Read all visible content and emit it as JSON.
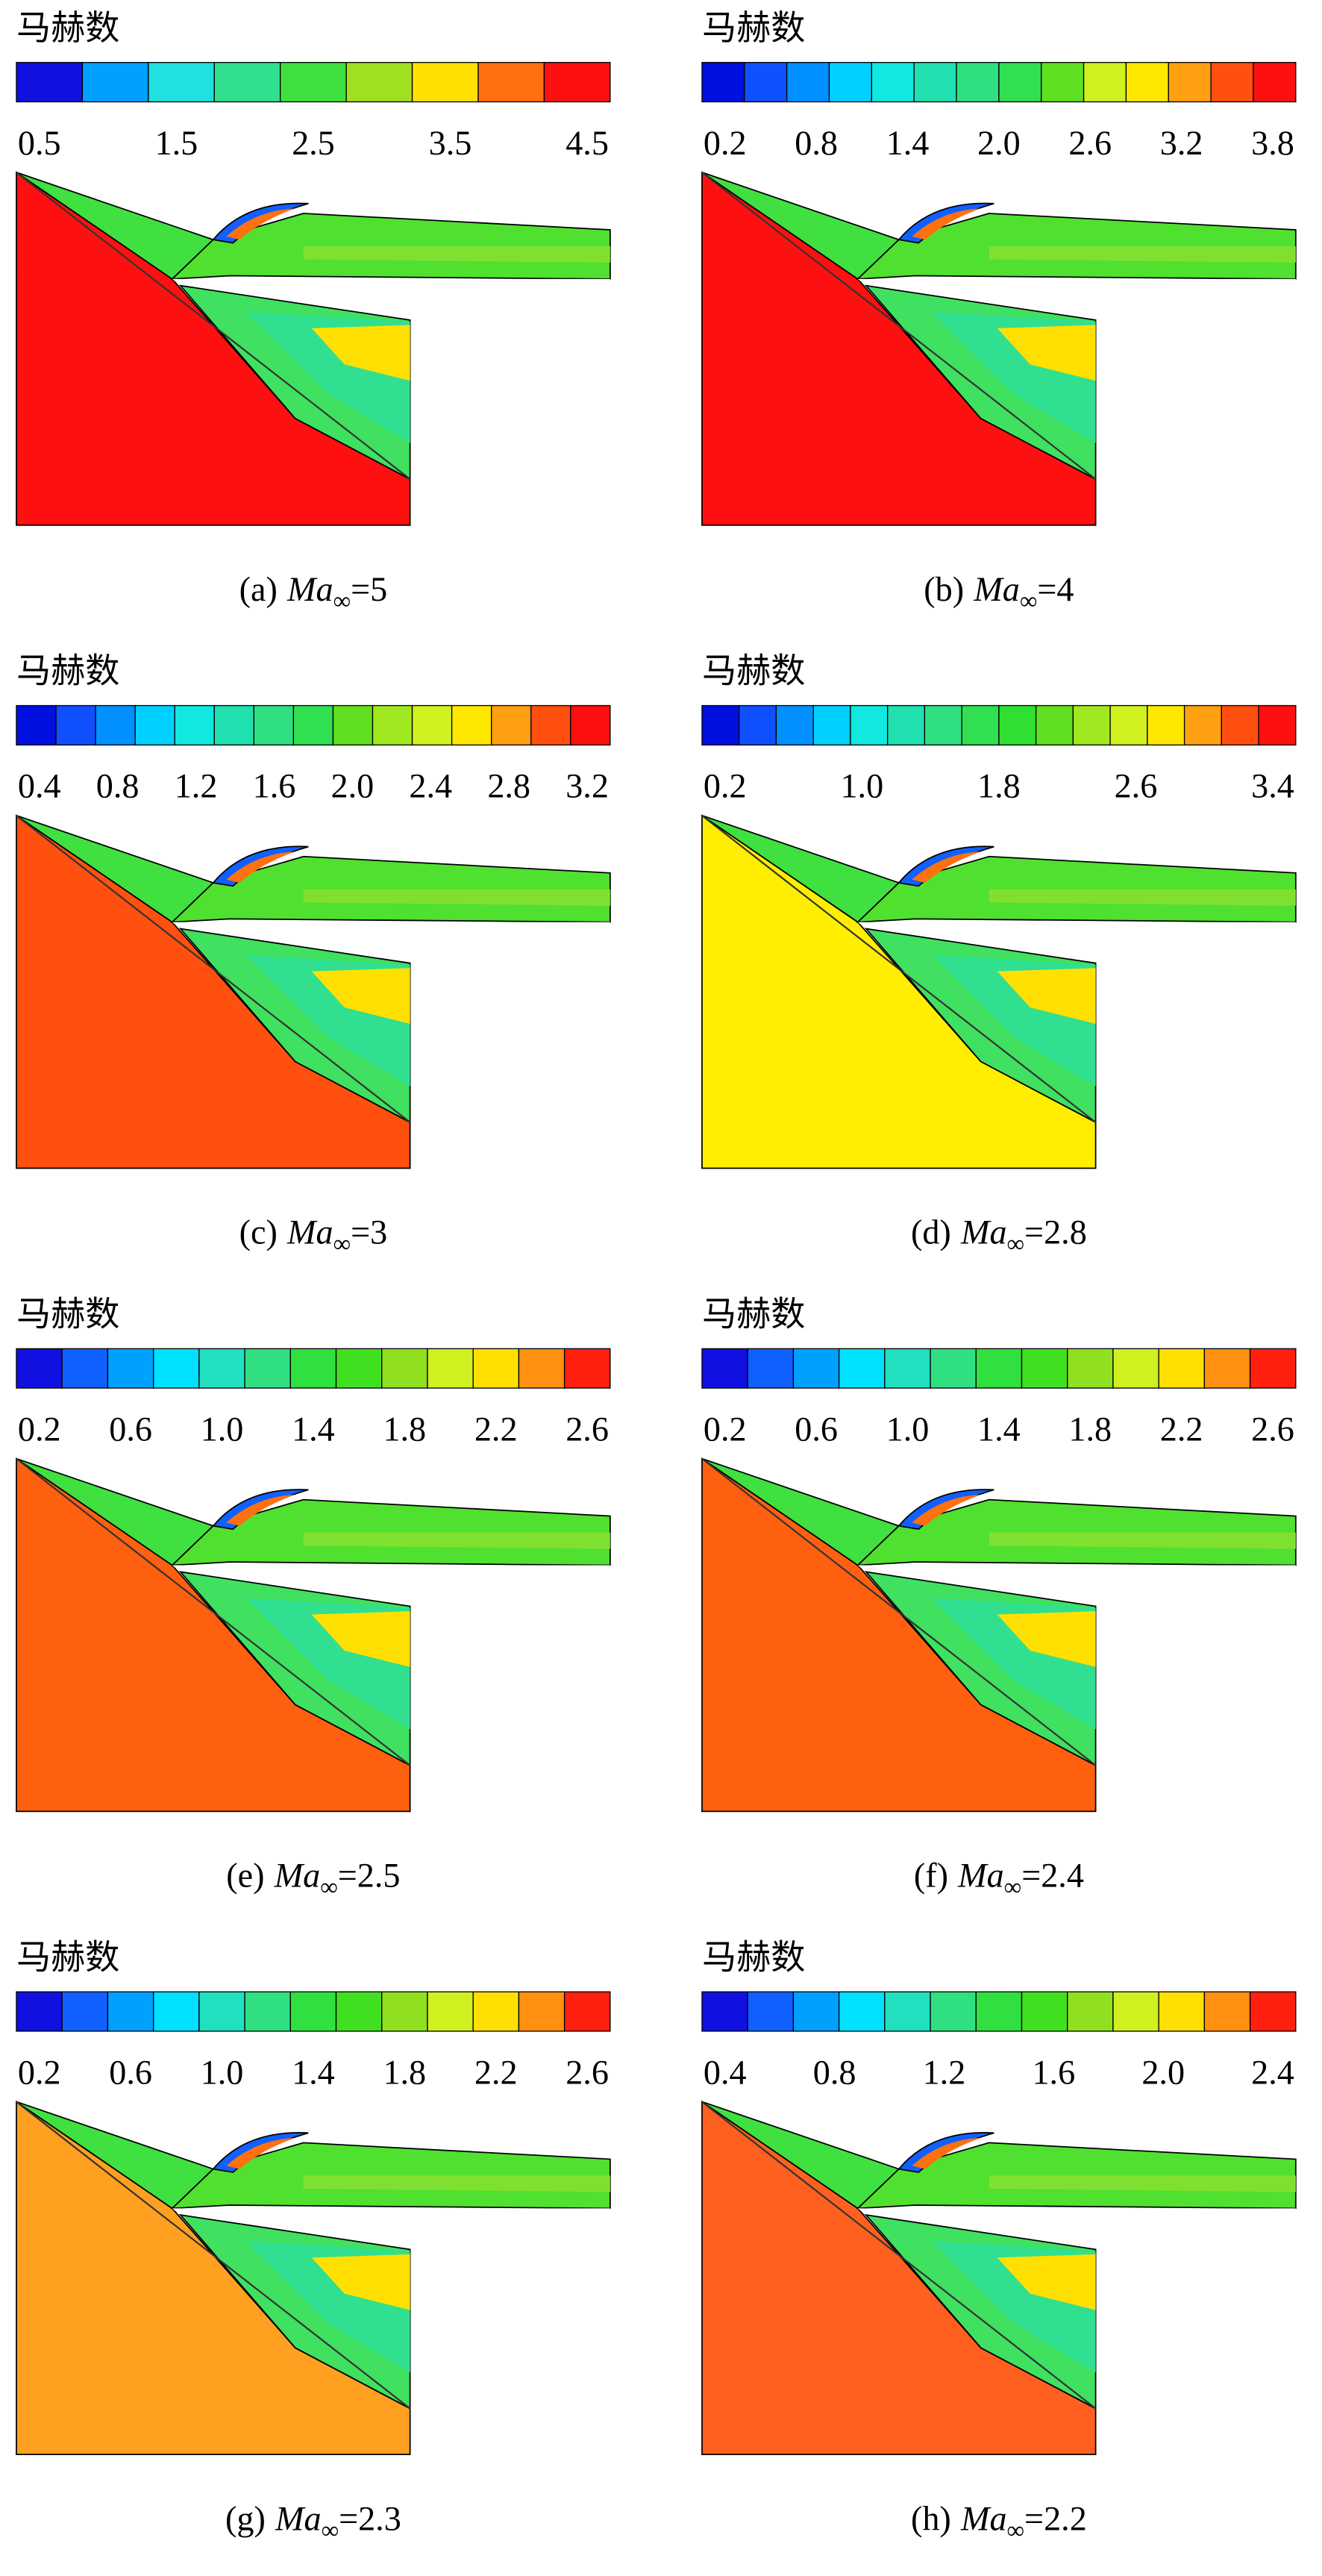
{
  "panels": [
    {
      "title": "马赫数",
      "ticks": [
        "0.5",
        "1.5",
        "2.5",
        "3.5",
        "4.5"
      ],
      "colors": [
        "#1010e0",
        "#00a0ff",
        "#20e0e0",
        "#30e090",
        "#40e040",
        "#a0e020",
        "#ffe000",
        "#ff7010",
        "#ff1010"
      ],
      "ramp_color": "#ff1010",
      "caption": {
        "label": "(a)",
        "symbol": "Ma",
        "subscript": "∞",
        "value": "=5"
      }
    },
    {
      "title": "马赫数",
      "ticks": [
        "0.2",
        "0.8",
        "1.4",
        "2.0",
        "2.6",
        "3.2",
        "3.8"
      ],
      "colors": [
        "#0010e0",
        "#1050ff",
        "#0090ff",
        "#00d0ff",
        "#10e8e0",
        "#20e0b0",
        "#30e080",
        "#30e050",
        "#60e020",
        "#d0f020",
        "#ffe800",
        "#ffa010",
        "#ff5010",
        "#ff1010"
      ],
      "ramp_color": "#ff1010",
      "caption": {
        "label": "(b)",
        "symbol": "Ma",
        "subscript": "∞",
        "value": "=4"
      }
    },
    {
      "title": "马赫数",
      "ticks": [
        "0.4",
        "0.8",
        "1.2",
        "1.6",
        "2.0",
        "2.4",
        "2.8",
        "3.2"
      ],
      "colors": [
        "#0010e0",
        "#1050ff",
        "#0090ff",
        "#00d0ff",
        "#10e8e0",
        "#20e0b0",
        "#30e080",
        "#30e050",
        "#60e020",
        "#a0e820",
        "#d0f020",
        "#ffe800",
        "#ffa010",
        "#ff5010",
        "#ff1010"
      ],
      "ramp_color": "#ff5010",
      "caption": {
        "label": "(c)",
        "symbol": "Ma",
        "subscript": "∞",
        "value": "=3"
      }
    },
    {
      "title": "马赫数",
      "ticks": [
        "0.2",
        "1.0",
        "1.8",
        "2.6",
        "3.4"
      ],
      "colors": [
        "#0010e0",
        "#1050ff",
        "#0090ff",
        "#00d0ff",
        "#10e8e0",
        "#20e0b0",
        "#30e080",
        "#30e050",
        "#30e030",
        "#60e020",
        "#a0e820",
        "#d0f020",
        "#ffe800",
        "#ffa010",
        "#ff5010",
        "#ff1010"
      ],
      "ramp_color": "#ffee00",
      "caption": {
        "label": "(d)",
        "symbol": "Ma",
        "subscript": "∞",
        "value": "=2.8"
      }
    },
    {
      "title": "马赫数",
      "ticks": [
        "0.2",
        "0.6",
        "1.0",
        "1.4",
        "1.8",
        "2.2",
        "2.6"
      ],
      "colors": [
        "#1010e0",
        "#1060ff",
        "#00a0ff",
        "#00e0ff",
        "#20e0c0",
        "#30e080",
        "#30e040",
        "#40e020",
        "#90e020",
        "#d0f020",
        "#ffe000",
        "#ff9010",
        "#ff2010"
      ],
      "ramp_color": "#ff6010",
      "caption": {
        "label": "(e)",
        "symbol": "Ma",
        "subscript": "∞",
        "value": "=2.5"
      }
    },
    {
      "title": "马赫数",
      "ticks": [
        "0.2",
        "0.6",
        "1.0",
        "1.4",
        "1.8",
        "2.2",
        "2.6"
      ],
      "colors": [
        "#1010e0",
        "#1060ff",
        "#00a0ff",
        "#00e0ff",
        "#20e0c0",
        "#30e080",
        "#30e040",
        "#40e020",
        "#90e020",
        "#d0f020",
        "#ffe000",
        "#ff9010",
        "#ff2010"
      ],
      "ramp_color": "#ff6010",
      "caption": {
        "label": "(f)",
        "symbol": "Ma",
        "subscript": "∞",
        "value": "=2.4"
      }
    },
    {
      "title": "马赫数",
      "ticks": [
        "0.2",
        "0.6",
        "1.0",
        "1.4",
        "1.8",
        "2.2",
        "2.6"
      ],
      "colors": [
        "#1010e0",
        "#1060ff",
        "#00a0ff",
        "#00e0ff",
        "#20e0c0",
        "#30e080",
        "#30e040",
        "#40e020",
        "#90e020",
        "#d0f020",
        "#ffe000",
        "#ff9010",
        "#ff2010"
      ],
      "ramp_color": "#ffa020",
      "caption": {
        "label": "(g)",
        "symbol": "Ma",
        "subscript": "∞",
        "value": "=2.3"
      }
    },
    {
      "title": "马赫数",
      "ticks": [
        "0.4",
        "0.8",
        "1.2",
        "1.6",
        "2.0",
        "2.4"
      ],
      "colors": [
        "#1010e0",
        "#1060ff",
        "#00a0ff",
        "#00e0ff",
        "#20e0c0",
        "#30e080",
        "#30e040",
        "#40e020",
        "#90e020",
        "#d0f020",
        "#ffe000",
        "#ff9010",
        "#ff2010"
      ],
      "ramp_color": "#ff6020",
      "caption": {
        "label": "(h)",
        "symbol": "Ma",
        "subscript": "∞",
        "value": "=2.2"
      }
    }
  ]
}
